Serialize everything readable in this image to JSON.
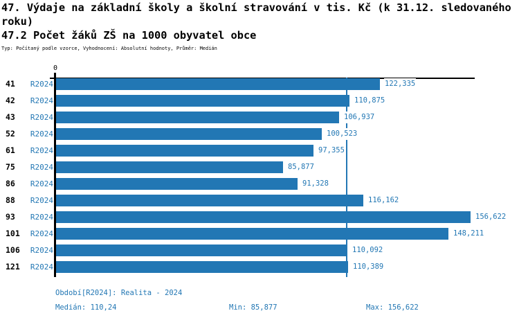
{
  "header": {
    "title_line1": "47. Výdaje na základní školy a školní stravování v tis. Kč (k 31.12. sledovaného",
    "title_line2": "roku)",
    "subtitle": "47.2 Počet žáků ZŠ na 1000 obyvatel obce",
    "meta": "Typ: Počítaný podle vzorce, Vyhodnocení: Absolutní hodnoty, Průměr: Medián"
  },
  "chart_data": {
    "type": "bar",
    "orientation": "horizontal",
    "title": "47.2 Počet žáků ZŠ na 1000 obyvatel obce",
    "categories": [
      "41",
      "42",
      "43",
      "52",
      "61",
      "75",
      "86",
      "88",
      "93",
      "101",
      "106",
      "121"
    ],
    "series_label": "R2024",
    "values": [
      122.335,
      110.875,
      106.937,
      100.523,
      97.355,
      85.877,
      91.328,
      116.162,
      156.622,
      148.211,
      110.092,
      110.389
    ],
    "value_labels": [
      "122,335",
      "110,875",
      "106,937",
      "100,523",
      "97,355",
      "85,877",
      "91,328",
      "116,162",
      "156,622",
      "148,211",
      "110,092",
      "110,389"
    ],
    "zero_tick_label": "0",
    "xlim": [
      0,
      158.5
    ],
    "median_value": 110.24,
    "grid": false,
    "legend": false,
    "colors": {
      "bar": "#2277b4",
      "median_line": "#2277b4",
      "value_text": "#2277b4",
      "series_text": "#2277b4",
      "footer_text": "#1c6d99",
      "title_text": "#000000",
      "axis": "#000000"
    }
  },
  "footer": {
    "period": "Období[R2024]: Realita - 2024",
    "median": "Medián: 110,24",
    "min": "Min: 85,877",
    "max": "Max: 156,622"
  }
}
